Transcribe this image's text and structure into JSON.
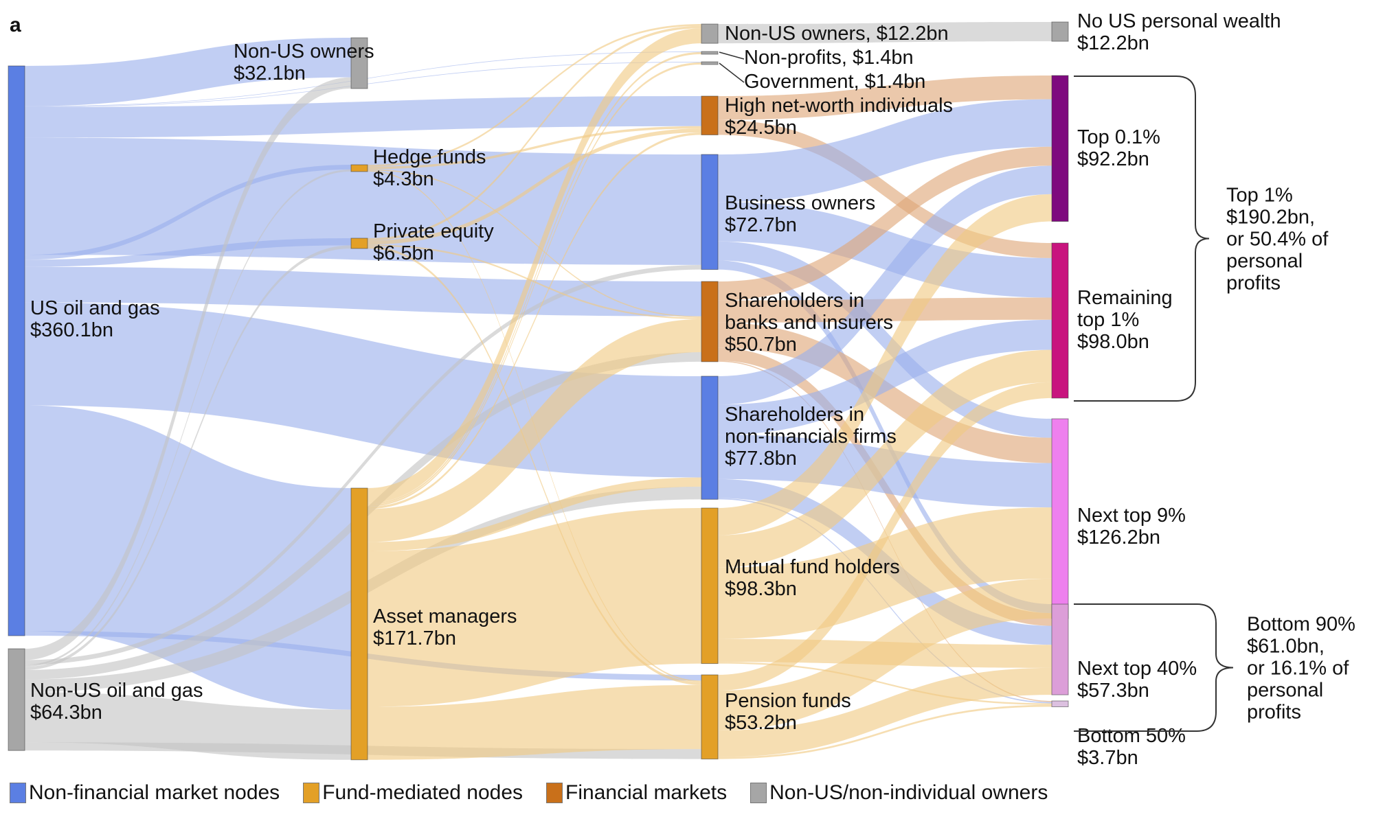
{
  "panel_letter": "a",
  "chart_data": {
    "type": "sankey",
    "units": "$bn",
    "colors": {
      "non_financial": "#5b7fe3",
      "fund_mediated": "#e3a027",
      "financial_markets": "#c9701a",
      "non_us": "#a6a6a6",
      "top01": "#7e0a7e",
      "remaining_top1": "#c8147e",
      "next9": "#ee80ee",
      "next40": "#dc9ed8",
      "bottom50": "#dcc0e0",
      "link_blue": "#9bb0ec",
      "link_gold": "#f0c982",
      "link_brown": "#dea678",
      "link_gray": "#c4c4c4"
    },
    "nodes": [
      {
        "id": "us_og",
        "name": "US oil and gas",
        "value_label": "$360.1bn",
        "value": 360.1,
        "column": 0,
        "category": "non_financial"
      },
      {
        "id": "nonus_og",
        "name": "Non-US oil and gas",
        "value_label": "$64.3bn",
        "value": 64.3,
        "column": 0,
        "category": "non_us"
      },
      {
        "id": "nonus_owners1",
        "name": "Non-US owners",
        "value_label": "$32.1bn",
        "value": 32.1,
        "column": 1,
        "category": "non_us"
      },
      {
        "id": "hedge",
        "name": "Hedge funds",
        "value_label": "$4.3bn",
        "value": 4.3,
        "column": 1,
        "category": "fund_mediated"
      },
      {
        "id": "pe",
        "name": "Private equity",
        "value_label": "$6.5bn",
        "value": 6.5,
        "column": 1,
        "category": "fund_mediated"
      },
      {
        "id": "am",
        "name": "Asset managers",
        "value_label": "$171.7bn",
        "value": 171.7,
        "column": 1,
        "category": "fund_mediated"
      },
      {
        "id": "nonus_owners2",
        "name": "Non-US owners, $12.2bn",
        "value_label": "",
        "value": 12.2,
        "column": 2,
        "category": "non_us"
      },
      {
        "id": "nonprofits",
        "name": "Non-profits, $1.4bn",
        "value_label": "",
        "value": 1.4,
        "column": 2,
        "category": "non_us"
      },
      {
        "id": "gov",
        "name": "Government, $1.4bn",
        "value_label": "",
        "value": 1.4,
        "column": 2,
        "category": "non_us"
      },
      {
        "id": "hnwi",
        "name": "High net-worth individuals",
        "value_label": "$24.5bn",
        "value": 24.5,
        "column": 2,
        "category": "financial_markets"
      },
      {
        "id": "bizown",
        "name": "Business owners",
        "value_label": "$72.7bn",
        "value": 72.7,
        "column": 2,
        "category": "non_financial"
      },
      {
        "id": "banks",
        "name": "Shareholders in banks and insurers",
        "value_label": "$50.7bn",
        "value": 50.7,
        "column": 2,
        "category": "financial_markets"
      },
      {
        "id": "nonfin",
        "name": "Shareholders in non-financials firms",
        "value_label": "$77.8bn",
        "value": 77.8,
        "column": 2,
        "category": "non_financial"
      },
      {
        "id": "mutual",
        "name": "Mutual fund holders",
        "value_label": "$98.3bn",
        "value": 98.3,
        "column": 2,
        "category": "fund_mediated"
      },
      {
        "id": "pension",
        "name": "Pension funds",
        "value_label": "$53.2bn",
        "value": 53.2,
        "column": 2,
        "category": "fund_mediated"
      },
      {
        "id": "nowealth",
        "name": "No US personal wealth",
        "value_label": "$12.2bn",
        "value": 12.2,
        "column": 3,
        "category": "non_us"
      },
      {
        "id": "top01",
        "name": "Top 0.1%",
        "value_label": "$92.2bn",
        "value": 92.2,
        "column": 3,
        "category": "top01"
      },
      {
        "id": "rem1",
        "name": "Remaining top 1%",
        "value_label": "$98.0bn",
        "value": 98.0,
        "column": 3,
        "category": "remaining_top1"
      },
      {
        "id": "next9",
        "name": "Next top 9%",
        "value_label": "$126.2bn",
        "value": 126.2,
        "column": 3,
        "category": "next9"
      },
      {
        "id": "next40",
        "name": "Next top 40%",
        "value_label": "$57.3bn",
        "value": 57.3,
        "column": 3,
        "category": "next40"
      },
      {
        "id": "bottom50",
        "name": "Bottom 50%",
        "value_label": "$3.7bn",
        "value": 3.7,
        "column": 3,
        "category": "bottom50"
      }
    ],
    "links": [
      {
        "source": "us_og",
        "target": "nonus_owners1",
        "value": 25.0,
        "color": "link_blue"
      },
      {
        "source": "us_og",
        "target": "nonprofits",
        "value": 0.3,
        "color": "link_blue"
      },
      {
        "source": "us_og",
        "target": "gov",
        "value": 0.3,
        "color": "link_blue"
      },
      {
        "source": "us_og",
        "target": "hnwi",
        "value": 19.0,
        "color": "link_blue"
      },
      {
        "source": "us_og",
        "target": "bizown",
        "value": 72.7,
        "color": "link_blue"
      },
      {
        "source": "us_og",
        "target": "hedge",
        "value": 3.0,
        "color": "link_blue"
      },
      {
        "source": "us_og",
        "target": "pe",
        "value": 4.5,
        "color": "link_blue"
      },
      {
        "source": "us_og",
        "target": "banks",
        "value": 22.0,
        "color": "link_blue"
      },
      {
        "source": "us_og",
        "target": "nonfin",
        "value": 64.0,
        "color": "link_blue"
      },
      {
        "source": "us_og",
        "target": "am",
        "value": 140.0,
        "color": "link_blue"
      },
      {
        "source": "us_og",
        "target": "pension",
        "value": 3.0,
        "color": "link_blue"
      },
      {
        "source": "nonus_og",
        "target": "nonus_owners1",
        "value": 7.1,
        "color": "link_gray"
      },
      {
        "source": "nonus_og",
        "target": "hedge",
        "value": 1.3,
        "color": "link_gray"
      },
      {
        "source": "nonus_og",
        "target": "pe",
        "value": 2.0,
        "color": "link_gray"
      },
      {
        "source": "nonus_og",
        "target": "bizown",
        "value": 3.0,
        "color": "link_gray"
      },
      {
        "source": "nonus_og",
        "target": "banks",
        "value": 6.0,
        "color": "link_gray"
      },
      {
        "source": "nonus_og",
        "target": "nonfin",
        "value": 8.0,
        "color": "link_gray"
      },
      {
        "source": "nonus_og",
        "target": "am",
        "value": 31.7,
        "color": "link_gray"
      },
      {
        "source": "nonus_og",
        "target": "pension",
        "value": 5.2,
        "color": "link_gray"
      },
      {
        "source": "hedge",
        "target": "nonus_owners2",
        "value": 1.2,
        "color": "link_gold"
      },
      {
        "source": "hedge",
        "target": "hnwi",
        "value": 1.5,
        "color": "link_gold"
      },
      {
        "source": "hedge",
        "target": "banks",
        "value": 0.8,
        "color": "link_gold"
      },
      {
        "source": "hedge",
        "target": "pension",
        "value": 0.8,
        "color": "link_gold"
      },
      {
        "source": "pe",
        "target": "nonus_owners2",
        "value": 1.5,
        "color": "link_gold"
      },
      {
        "source": "pe",
        "target": "hnwi",
        "value": 2.5,
        "color": "link_gold"
      },
      {
        "source": "pe",
        "target": "banks",
        "value": 1.0,
        "color": "link_gold"
      },
      {
        "source": "pe",
        "target": "pension",
        "value": 1.5,
        "color": "link_gold"
      },
      {
        "source": "am",
        "target": "nonus_owners2",
        "value": 9.5,
        "color": "link_gold"
      },
      {
        "source": "am",
        "target": "nonprofits",
        "value": 1.1,
        "color": "link_gold"
      },
      {
        "source": "am",
        "target": "gov",
        "value": 1.1,
        "color": "link_gold"
      },
      {
        "source": "am",
        "target": "hnwi",
        "value": 1.5,
        "color": "link_gold"
      },
      {
        "source": "am",
        "target": "banks",
        "value": 20.9,
        "color": "link_gold"
      },
      {
        "source": "am",
        "target": "nonfin",
        "value": 5.8,
        "color": "link_gold"
      },
      {
        "source": "am",
        "target": "mutual",
        "value": 98.3,
        "color": "link_gold"
      },
      {
        "source": "am",
        "target": "pension",
        "value": 33.5,
        "color": "link_gold"
      },
      {
        "source": "nonus_owners2",
        "target": "nowealth",
        "value": 12.2,
        "color": "link_gray"
      },
      {
        "source": "hnwi",
        "target": "top01",
        "value": 15.0,
        "color": "link_brown"
      },
      {
        "source": "hnwi",
        "target": "rem1",
        "value": 9.5,
        "color": "link_brown"
      },
      {
        "source": "bizown",
        "target": "top01",
        "value": 30.0,
        "color": "link_blue"
      },
      {
        "source": "bizown",
        "target": "rem1",
        "value": 25.0,
        "color": "link_blue"
      },
      {
        "source": "bizown",
        "target": "next9",
        "value": 12.0,
        "color": "link_blue"
      },
      {
        "source": "bizown",
        "target": "next40",
        "value": 5.7,
        "color": "link_blue"
      },
      {
        "source": "banks",
        "target": "top01",
        "value": 12.0,
        "color": "link_brown"
      },
      {
        "source": "banks",
        "target": "rem1",
        "value": 14.0,
        "color": "link_brown"
      },
      {
        "source": "banks",
        "target": "next9",
        "value": 16.0,
        "color": "link_brown"
      },
      {
        "source": "banks",
        "target": "next40",
        "value": 8.0,
        "color": "link_brown"
      },
      {
        "source": "banks",
        "target": "bottom50",
        "value": 0.7,
        "color": "link_brown"
      },
      {
        "source": "nonfin",
        "target": "top01",
        "value": 18.0,
        "color": "link_blue"
      },
      {
        "source": "nonfin",
        "target": "rem1",
        "value": 19.0,
        "color": "link_blue"
      },
      {
        "source": "nonfin",
        "target": "next9",
        "value": 28.0,
        "color": "link_blue"
      },
      {
        "source": "nonfin",
        "target": "next40",
        "value": 12.0,
        "color": "link_blue"
      },
      {
        "source": "nonfin",
        "target": "bottom50",
        "value": 0.8,
        "color": "link_blue"
      },
      {
        "source": "mutual",
        "target": "top01",
        "value": 17.2,
        "color": "link_gold"
      },
      {
        "source": "mutual",
        "target": "rem1",
        "value": 20.5,
        "color": "link_gold"
      },
      {
        "source": "mutual",
        "target": "next9",
        "value": 45.0,
        "color": "link_gold"
      },
      {
        "source": "mutual",
        "target": "next40",
        "value": 14.6,
        "color": "link_gold"
      },
      {
        "source": "mutual",
        "target": "bottom50",
        "value": 1.0,
        "color": "link_gold"
      },
      {
        "source": "pension",
        "target": "rem1",
        "value": 10.0,
        "color": "link_gold"
      },
      {
        "source": "pension",
        "target": "next9",
        "value": 25.2,
        "color": "link_gold"
      },
      {
        "source": "pension",
        "target": "next40",
        "value": 17.0,
        "color": "link_gold"
      },
      {
        "source": "pension",
        "target": "bottom50",
        "value": 1.2,
        "color": "link_gold"
      }
    ],
    "annotations": [
      {
        "id": "top1",
        "lines": [
          "Top 1%",
          "$190.2bn,",
          "or 50.4% of",
          "personal",
          "profits"
        ],
        "spans": [
          "top01",
          "rem1"
        ]
      },
      {
        "id": "bottom90",
        "lines": [
          "Bottom 90%",
          "$61.0bn,",
          "or 16.1% of",
          "personal",
          "profits"
        ],
        "spans": [
          "next40",
          "bottom50"
        ]
      }
    ],
    "legend": [
      {
        "label": "Non-financial market nodes",
        "category": "non_financial"
      },
      {
        "label": "Fund-mediated nodes",
        "category": "fund_mediated"
      },
      {
        "label": "Financial markets",
        "category": "financial_markets"
      },
      {
        "label": "Non-US/non-individual owners",
        "category": "non_us"
      }
    ],
    "legend_placement": "bottom"
  }
}
